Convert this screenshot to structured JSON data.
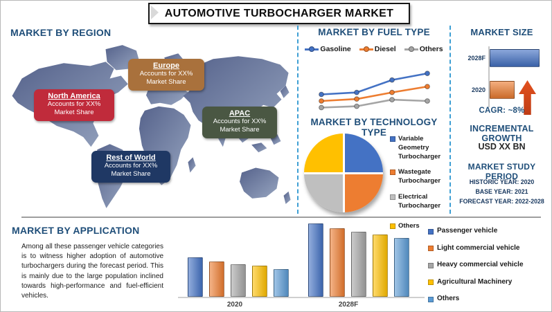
{
  "header": {
    "title": "AUTOMOTIVE TURBOCHARGER MARKET"
  },
  "region_panel": {
    "heading": "MARKET BY REGION",
    "regions": [
      {
        "name": "North America",
        "line1": "Accounts for XX%",
        "line2": "Market Share",
        "color": "#C02B3B"
      },
      {
        "name": "Europe",
        "line1": "Accounts for XX%",
        "line2": "Market Share",
        "color": "#A9713C"
      },
      {
        "name": "APAC",
        "line1": "Accounts for XX%",
        "line2": "Market Share",
        "color": "#4A5743"
      },
      {
        "name": "Rest of World",
        "line1": "Accounts for XX%",
        "line2": "Market Share",
        "color": "#1F3864"
      }
    ]
  },
  "size_panel": {
    "cagr": "CAGR: ~8%"
  },
  "growth_panel": {
    "heading": "INCREMENTAL GROWTH",
    "value": "USD XX BN"
  },
  "study_panel": {
    "heading": "MARKET STUDY PERIOD",
    "lines": [
      "HISTORIC YEAR: 2020",
      "BASE YEAR: 2021",
      "FORECAST YEAR: 2022-2028"
    ]
  },
  "application_panel": {
    "paragraph": "Among all these passenger vehicle categories is to witness higher adoption of automotive turbochargers during the forecast period. This is mainly due to the large population inclined towards high-performance and fuel-efficient vehicles."
  },
  "chart_data": [
    {
      "id": "fuel_type",
      "type": "line",
      "title": "MARKET BY FUEL TYPE",
      "x": [
        1,
        2,
        3,
        4
      ],
      "series": [
        {
          "name": "Gasoline",
          "color": "#4472C4",
          "values": [
            30,
            33,
            52,
            62
          ]
        },
        {
          "name": "Diesel",
          "color": "#ED7D31",
          "values": [
            20,
            23,
            33,
            42
          ]
        },
        {
          "name": "Others",
          "color": "#A5A5A5",
          "values": [
            10,
            12,
            22,
            20
          ]
        }
      ],
      "legend_position": "top",
      "axes_visible": false,
      "ylim": [
        0,
        70
      ]
    },
    {
      "id": "technology_type",
      "type": "pie",
      "title": "MARKET BY TECHNOLOGY TYPE",
      "labels": [
        "Variable Geometry Turbocharger",
        "Wastegate Turbocharger",
        "Electrical Turbocharger",
        "Others"
      ],
      "values": [
        25,
        25,
        25,
        25
      ],
      "colors": [
        "#4472C4",
        "#ED7D31",
        "#BFBFBF",
        "#FFC000"
      ],
      "legend_position": "right"
    },
    {
      "id": "market_size",
      "type": "bar",
      "orientation": "horizontal",
      "title": "MARKET SIZE",
      "categories": [
        "2028F",
        "2020"
      ],
      "values": [
        90,
        44
      ],
      "colors": [
        "#4472C4",
        "#ED7D31"
      ]
    },
    {
      "id": "application",
      "type": "bar",
      "title": "MARKET BY APPLICATION",
      "categories": [
        "2020",
        "2028F"
      ],
      "series": [
        {
          "name": "Passenger vehicle",
          "color": "#4472C4",
          "values": [
            42,
            80
          ]
        },
        {
          "name": "Light commercial vehicle",
          "color": "#ED7D31",
          "values": [
            38,
            75
          ]
        },
        {
          "name": "Heavy commercial vehicle",
          "color": "#A6A6A6",
          "values": [
            35,
            71
          ]
        },
        {
          "name": "Agricultural Machinery",
          "color": "#FFC000",
          "values": [
            33,
            68
          ]
        },
        {
          "name": "Others",
          "color": "#5B9BD5",
          "values": [
            29,
            64
          ]
        }
      ],
      "legend_position": "right",
      "ylim": [
        0,
        100
      ]
    }
  ]
}
